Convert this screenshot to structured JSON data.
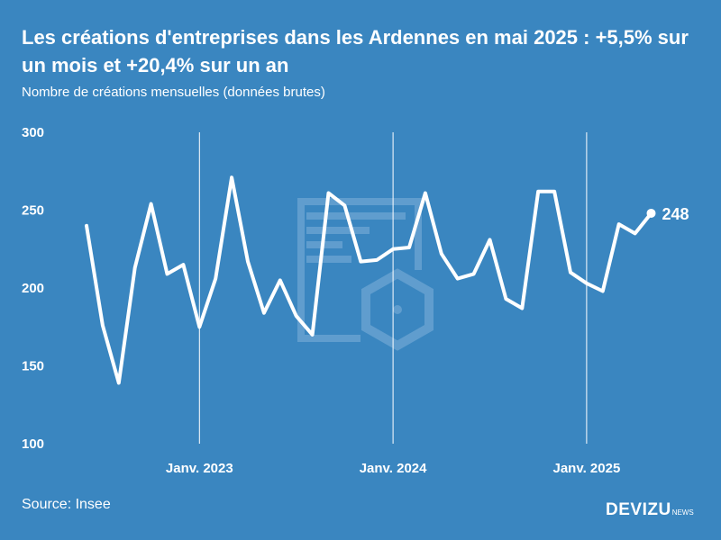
{
  "title": "Les créations d'entreprises dans les Ardennes en mai 2025 : +5,5% sur un mois et +20,4% sur un an",
  "subtitle": "Nombre de créations mensuelles (données brutes)",
  "source": "Source: Insee",
  "brand": {
    "name": "DEVIZU",
    "suffix": "NEWS"
  },
  "colors": {
    "background": "#3a86c0",
    "line": "#ffffff",
    "watermark": "#7fb0d8"
  },
  "chart_data": {
    "type": "line",
    "ylim": [
      100,
      300
    ],
    "yticks": [
      300,
      250,
      200,
      150,
      100
    ],
    "x_reference_lines": [
      {
        "index": 7,
        "label": "Janv. 2023"
      },
      {
        "index": 19,
        "label": "Janv. 2024"
      },
      {
        "index": 31,
        "label": "Janv. 2025"
      }
    ],
    "series": [
      {
        "values": [
          240,
          176,
          139,
          213,
          254,
          209,
          215,
          175,
          206,
          271,
          217,
          184,
          205,
          182,
          170,
          261,
          253,
          217,
          218,
          225,
          226,
          261,
          222,
          206,
          209,
          231,
          193,
          187,
          262,
          262,
          210,
          203,
          198,
          241,
          235,
          248
        ]
      }
    ],
    "end_label": "248",
    "grid": false
  }
}
